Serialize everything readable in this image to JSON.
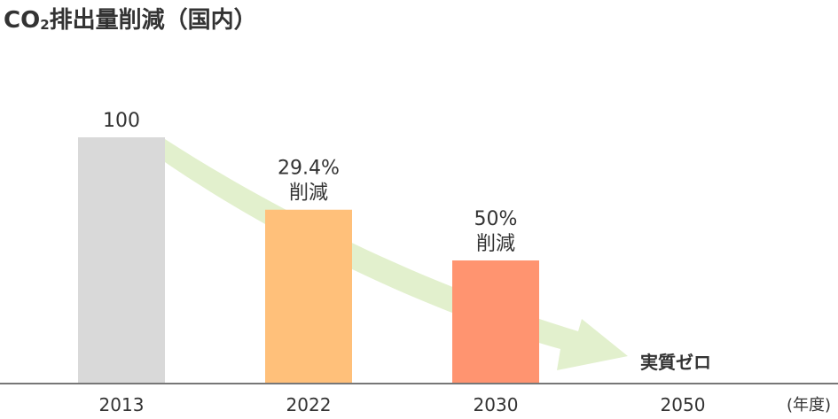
{
  "chart_data": {
    "type": "bar",
    "title_prefix": "CO",
    "title_subscript": "2",
    "title_suffix": "排出量削減（国内）",
    "categories": [
      "2013",
      "2022",
      "2030",
      "2050"
    ],
    "values": [
      100,
      70.6,
      50,
      0
    ],
    "bar_labels": [
      [
        "100"
      ],
      [
        "29.4%",
        "削減"
      ],
      [
        "50%",
        "削減"
      ],
      [
        "実質ゼロ"
      ]
    ],
    "x_unit_label": "(年度)",
    "ylim": [
      0,
      100
    ],
    "grid": false,
    "legend": "none",
    "trend_arrow": true,
    "colors": {
      "bars": [
        "#d9d9d9",
        "#ffc07a",
        "#ff9470",
        "#ffffff"
      ],
      "arrow": "#e2f0cd",
      "axis": "#777777",
      "text": "#333333"
    }
  }
}
